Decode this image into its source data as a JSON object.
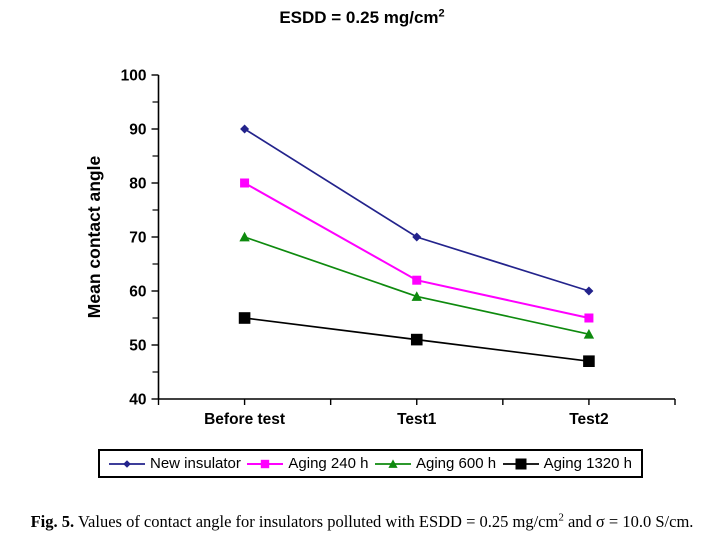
{
  "title": {
    "text": "ESDD = 0.25 mg/cm",
    "sup": "2"
  },
  "chart_data": {
    "type": "line",
    "categories": [
      "Before test",
      "Test1",
      "Test2"
    ],
    "series": [
      {
        "name": "New insulator",
        "values": [
          90,
          70,
          60
        ],
        "color": "#23238C",
        "marker": "diamond"
      },
      {
        "name": "Aging 240 h",
        "values": [
          80,
          62,
          55
        ],
        "color": "#FF00FF",
        "marker": "square"
      },
      {
        "name": "Aging 600 h",
        "values": [
          70,
          59,
          52
        ],
        "color": "#0E8A0E",
        "marker": "triangle"
      },
      {
        "name": "Aging 1320 h",
        "values": [
          55,
          51,
          47
        ],
        "color": "#000000",
        "marker": "square-large"
      }
    ],
    "title": "ESDD = 0.25 mg/cm2",
    "xlabel": "",
    "ylabel": "Mean contact angle",
    "ylim": [
      40,
      100
    ],
    "ytick_major_step": 10,
    "ytick_minor_step": 5,
    "yticks": [
      40,
      50,
      60,
      70,
      80,
      90,
      100
    ],
    "grid": false,
    "legend_position": "bottom",
    "axis_color": "#000000"
  },
  "caption": {
    "fig_label": "Fig. 5.",
    "text_before_sup": " Values of contact angle for insulators polluted with ESDD = 0.25 mg/cm",
    "sup": "2",
    "text_after_sup": " and σ = 10.0 S/cm."
  }
}
